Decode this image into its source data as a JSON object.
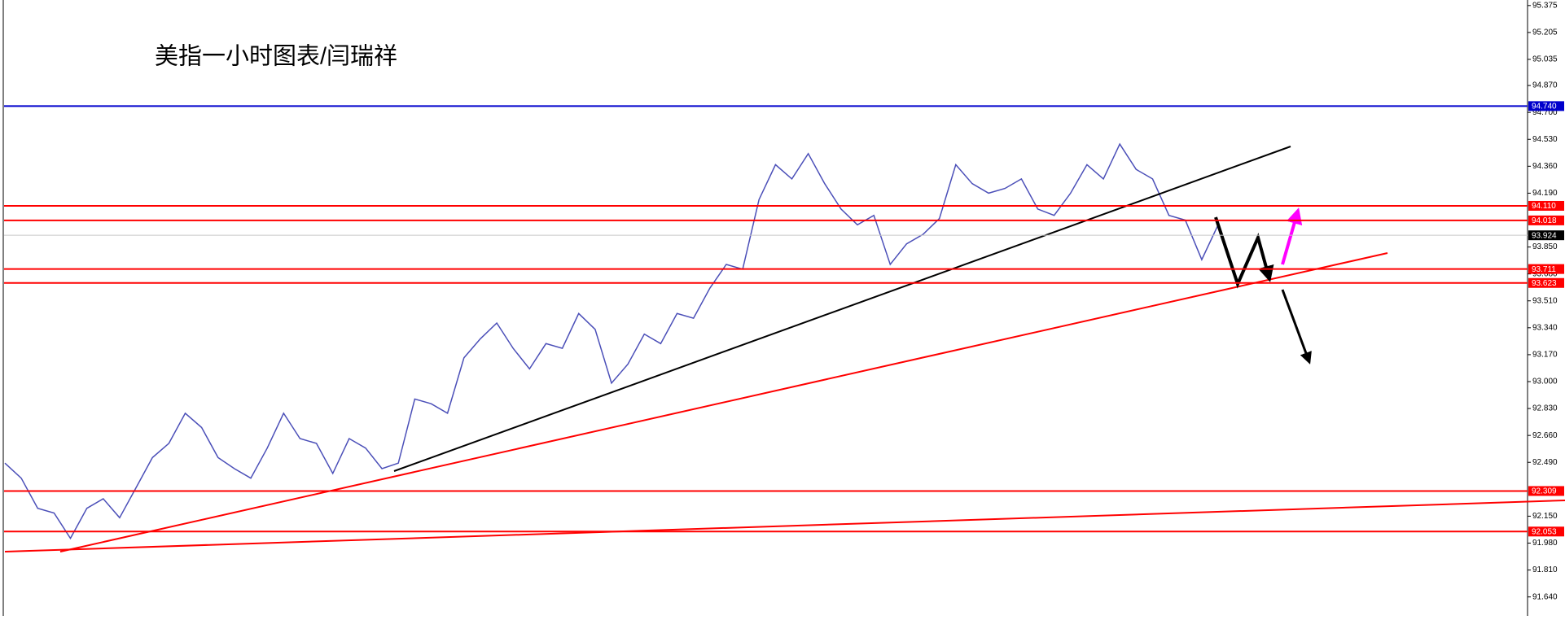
{
  "chart_data": {
    "type": "line",
    "title": "美指一小时图表/闫瑞祥",
    "categories": [
      null,
      null,
      null,
      null,
      null,
      null,
      null,
      null,
      null,
      null,
      null,
      null,
      null,
      null,
      null,
      null,
      null,
      null,
      null,
      null,
      null,
      null,
      null,
      null,
      null,
      null,
      null,
      null,
      null,
      null,
      null,
      null,
      null,
      null,
      null,
      null,
      null,
      null,
      null,
      null,
      null,
      null,
      null,
      null,
      null,
      null,
      null,
      null,
      null,
      null,
      null,
      null,
      null,
      null,
      null,
      null,
      null,
      null,
      null,
      null,
      null,
      null,
      null,
      null,
      null,
      null,
      null,
      null,
      null,
      null,
      null,
      null,
      null,
      null,
      null
    ],
    "series": [
      {
        "color": "#4b4fb8",
        "values": [
          92.485,
          92.39,
          92.2,
          92.17,
          92.01,
          92.2,
          92.26,
          92.14,
          92.33,
          92.52,
          92.61,
          92.8,
          92.71,
          92.52,
          92.45,
          92.39,
          92.58,
          92.8,
          92.64,
          92.61,
          92.42,
          92.64,
          92.58,
          92.45,
          92.485,
          92.89,
          92.86,
          92.8,
          93.15,
          93.27,
          93.37,
          93.21,
          93.08,
          93.24,
          93.21,
          93.43,
          93.33,
          92.99,
          93.11,
          93.3,
          93.24,
          93.43,
          93.4,
          93.59,
          93.74,
          93.71,
          94.15,
          94.37,
          94.28,
          94.44,
          94.25,
          94.09,
          93.99,
          94.05,
          93.74,
          93.87,
          93.93,
          94.03,
          94.37,
          94.25,
          94.19,
          94.22,
          94.28,
          94.09,
          94.05,
          94.19,
          94.37,
          94.28,
          94.5,
          94.34,
          94.28,
          94.05,
          94.02,
          93.77,
          93.99
        ]
      }
    ],
    "ylim": [
      91.52,
      95.41
    ],
    "yticks": [
      95.375,
      95.205,
      95.035,
      {
        "value": 94.87,
        "label": "94.870"
      },
      {
        "value": 94.7,
        "label": "94.700"
      },
      {
        "value": 94.53,
        "label": "94.530"
      },
      {
        "value": 94.36,
        "label": "94.360"
      },
      {
        "value": 94.19,
        "label": "94.190"
      },
      {
        "value": 93.85,
        "label": "93.850"
      },
      {
        "value": 93.68,
        "label": "93.680"
      },
      {
        "value": 93.51,
        "label": "93.510"
      },
      {
        "value": 93.34,
        "label": "93.340"
      },
      {
        "value": 93.17,
        "label": "93.170"
      },
      {
        "value": 93,
        "label": "93.000"
      },
      {
        "value": 92.83,
        "label": "92.830"
      },
      {
        "value": 92.66,
        "label": "92.660"
      },
      {
        "value": 92.49,
        "label": "92.490"
      },
      {
        "value": 92.15,
        "label": "92.150"
      },
      {
        "value": 91.98,
        "label": "91.980"
      },
      {
        "value": 91.81,
        "label": "91.810"
      },
      {
        "value": 91.64,
        "label": "91.640"
      }
    ],
    "levels": [
      {
        "value": 94.74,
        "label": "94.740",
        "color": "#0000cc"
      },
      {
        "value": 94.11,
        "label": "94.110",
        "color": "#ff0000"
      },
      {
        "value": 94.018,
        "label": "94.018",
        "color": "#ff0000"
      },
      {
        "value": 93.924,
        "label": "93.924",
        "color": "#000000"
      },
      {
        "value": 93.711,
        "label": "93.711",
        "color": "#ff0000"
      },
      {
        "value": 93.623,
        "label": "93.623",
        "color": "#ff0000"
      },
      {
        "value": 92.309,
        "label": "92.309",
        "color": "#ff0000"
      },
      {
        "value": 92.053,
        "label": "92.053",
        "color": "#ff0000"
      }
    ]
  }
}
